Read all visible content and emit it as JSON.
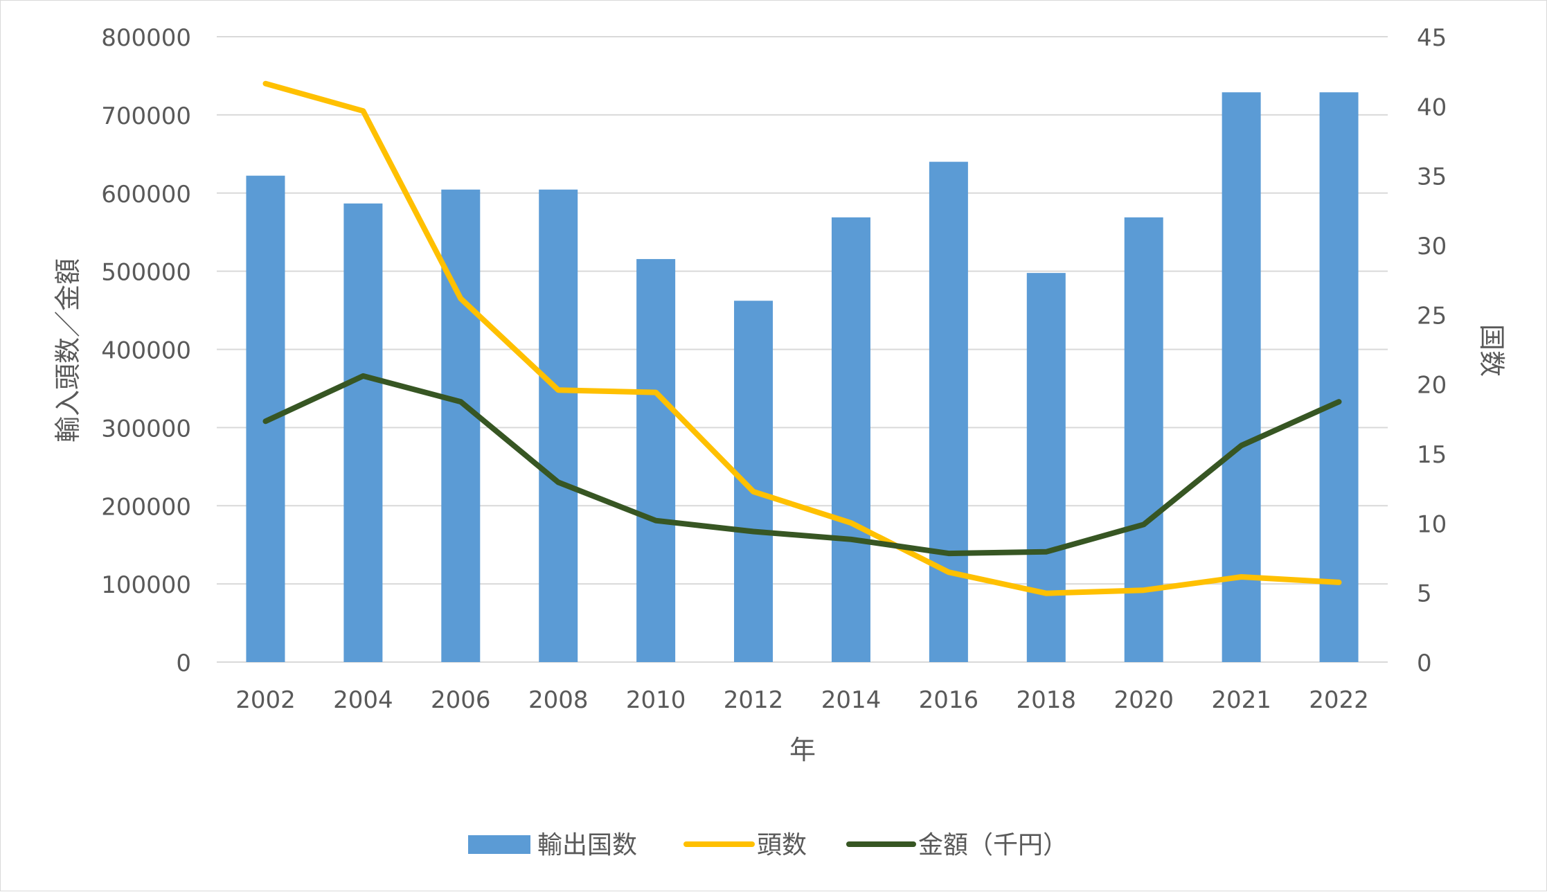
{
  "chart_data": {
    "type": "bar",
    "categories": [
      "2002",
      "2004",
      "2006",
      "2008",
      "2010",
      "2012",
      "2014",
      "2016",
      "2018",
      "2020",
      "2021",
      "2022"
    ],
    "series": [
      {
        "name": "輸出国数",
        "type": "bar",
        "axis": "right",
        "values": [
          35,
          33,
          34,
          34,
          29,
          26,
          32,
          36,
          28,
          32,
          41,
          41
        ]
      },
      {
        "name": "頭数",
        "type": "line",
        "axis": "left",
        "values": [
          740000,
          705000,
          465000,
          348000,
          345000,
          218000,
          178000,
          115000,
          88000,
          92000,
          109000,
          102000
        ]
      },
      {
        "name": "金額（千円）",
        "type": "line",
        "axis": "left",
        "values": [
          308000,
          366000,
          333000,
          230000,
          181000,
          167000,
          157000,
          139000,
          141000,
          176000,
          277000,
          333000
        ]
      }
    ],
    "title": "",
    "xlabel": "年",
    "ylabel": "輸入頭数／金額",
    "y2label": "国数",
    "ylim": [
      0,
      800000
    ],
    "y2lim": [
      0,
      45
    ],
    "yticks": [
      "0",
      "100000",
      "200000",
      "300000",
      "400000",
      "500000",
      "600000",
      "700000",
      "800000"
    ],
    "y2ticks": [
      "0",
      "5",
      "10",
      "15",
      "20",
      "25",
      "30",
      "35",
      "40",
      "45"
    ],
    "grid": true,
    "legend_position": "bottom",
    "colors": {
      "bars": "#5b9bd5",
      "head_count": "#ffc000",
      "amount": "#375623",
      "grid": "#d9d9d9",
      "text": "#595959"
    }
  }
}
